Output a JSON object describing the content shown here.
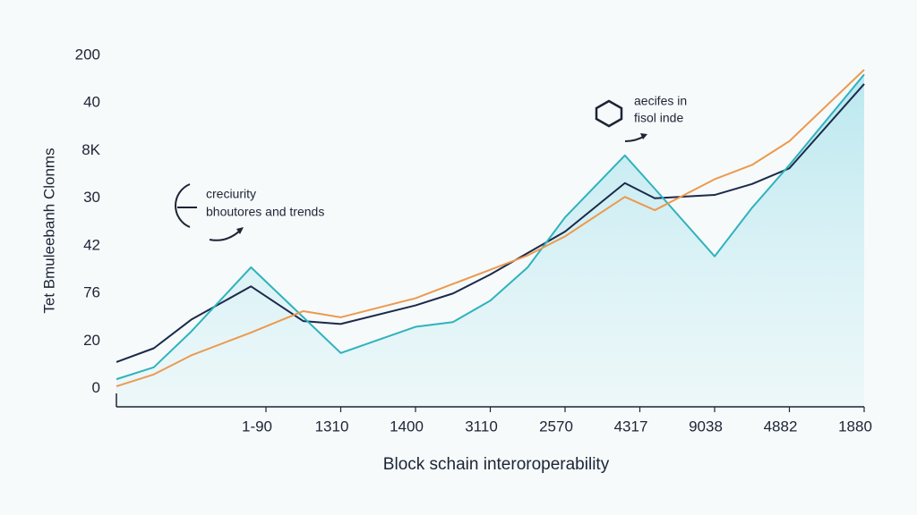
{
  "chart_data": {
    "type": "line",
    "y_label": "Tet Bmuleebanh Clonms",
    "x_label": "Block schain interoroperability",
    "annotations": [
      "creciurity",
      "bhoutores and trends",
      "aecifes in",
      "fisol inde"
    ],
    "x": [
      0,
      0.5,
      1,
      1.8,
      2.5,
      3,
      4,
      4.5,
      5,
      5.5,
      6,
      6.8,
      7.2,
      8,
      8.5,
      9,
      10
    ],
    "series": [
      {
        "color": "#1b2a4a",
        "values": [
          0.56,
          0.85,
          1.45,
          2.15,
          1.42,
          1.36,
          1.75,
          2.0,
          2.4,
          2.85,
          3.3,
          4.32,
          4.0,
          4.07,
          4.3,
          4.63,
          6.4
        ]
      },
      {
        "color": "#2fb3bd",
        "values": [
          0.2,
          0.45,
          1.2,
          2.55,
          1.5,
          0.75,
          1.3,
          1.4,
          1.85,
          2.55,
          3.6,
          4.9,
          4.2,
          2.78,
          3.8,
          4.7,
          6.6
        ]
      },
      {
        "color": "#ec9a4e",
        "values": [
          0.05,
          0.3,
          0.7,
          1.18,
          1.63,
          1.5,
          1.9,
          2.2,
          2.5,
          2.8,
          3.2,
          4.03,
          3.75,
          4.4,
          4.7,
          5.2,
          6.7
        ]
      }
    ],
    "area_color": "#bfeaf0",
    "xlim": [
      0,
      10
    ],
    "xticks": [
      {
        "value": 2,
        "label": "1-90"
      },
      {
        "value": 3,
        "label": "1310"
      },
      {
        "value": 4,
        "label": "1400"
      },
      {
        "value": 5,
        "label": "3110"
      },
      {
        "value": 6,
        "label": "2570"
      },
      {
        "value": 7,
        "label": "4317"
      },
      {
        "value": 8,
        "label": "9038"
      },
      {
        "value": 9,
        "label": "4882"
      },
      {
        "value": 10,
        "label": "1880"
      }
    ],
    "ylim": [
      -0.38,
      7
    ],
    "yticks": [
      0,
      {
        "value": 1,
        "label": "20"
      },
      {
        "value": 2,
        "label": "76"
      },
      {
        "value": 3,
        "label": "42"
      },
      {
        "value": 4,
        "label": "30"
      },
      {
        "value": 5,
        "label": "8K"
      },
      {
        "value": 6,
        "label": "40"
      },
      {
        "value": 7,
        "label": "200"
      }
    ]
  }
}
